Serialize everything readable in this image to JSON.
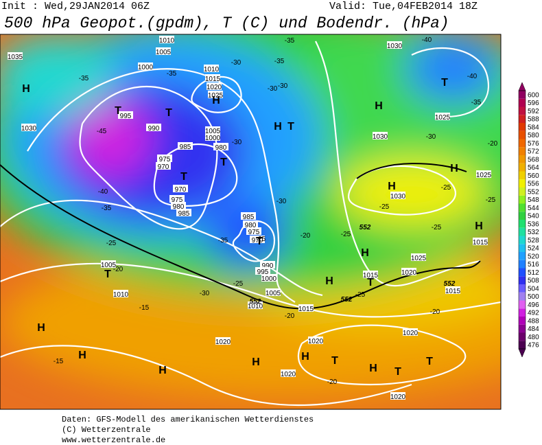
{
  "header": {
    "init": "Init : Wed,29JAN2014 06Z",
    "valid": "Valid: Tue,04FEB2014 18Z",
    "title": "500 hPa Geopot.(gpdm), T (C) und Bodendr. (hPa)"
  },
  "map": {
    "pressure_labels": [
      "1035",
      "1010",
      "1005",
      "1000",
      "995",
      "990",
      "1010",
      "1015",
      "1020",
      "1025",
      "1005",
      "1000",
      "985",
      "980",
      "975",
      "970",
      "970",
      "975",
      "980",
      "985",
      "985",
      "980",
      "975",
      "970",
      "990",
      "995",
      "1000",
      "1005",
      "1010",
      "1015",
      "1010",
      "1005",
      "1030",
      "1030",
      "1025",
      "1030",
      "1030",
      "1025",
      "1015",
      "1025",
      "1020",
      "1015",
      "1015",
      "1020",
      "1020",
      "1020",
      "1020",
      "1020"
    ],
    "temperature_labels": [
      "-35",
      "-40",
      "-35",
      "-30",
      "-35",
      "-30",
      "-30",
      "-40",
      "-35",
      "-30",
      "-35",
      "-45",
      "-40",
      "-35",
      "-25",
      "-35",
      "-30",
      "-25",
      "-20",
      "-25",
      "-25",
      "-25",
      "-25",
      "-25",
      "-20",
      "-20",
      "-25",
      "-30",
      "-15",
      "-20",
      "-20",
      "-15",
      "-20",
      "-25",
      "-30"
    ],
    "centers": [
      "H",
      "T",
      "T",
      "T",
      "H",
      "H",
      "T",
      "T",
      "T",
      "H",
      "H",
      "H",
      "H",
      "T",
      "T",
      "H",
      "H",
      "T",
      "H",
      "H",
      "H",
      "H",
      "H",
      "T",
      "H",
      "T",
      "T"
    ],
    "line_552_labels": [
      "552",
      "552",
      "552",
      "552"
    ]
  },
  "colorbar": {
    "ticks": [
      476,
      480,
      484,
      488,
      492,
      496,
      500,
      504,
      508,
      512,
      516,
      520,
      524,
      528,
      532,
      536,
      540,
      544,
      548,
      552,
      556,
      560,
      564,
      568,
      572,
      576,
      580,
      584,
      588,
      592,
      596,
      600
    ],
    "colors": [
      "#4b0050",
      "#6a006a",
      "#8a0090",
      "#b000b8",
      "#d020e0",
      "#e060f0",
      "#a080f0",
      "#6a5cff",
      "#3030f0",
      "#2050ff",
      "#2080ff",
      "#20a0ff",
      "#20c0f0",
      "#20d8d0",
      "#20e0a0",
      "#20e070",
      "#30d040",
      "#50e030",
      "#90f020",
      "#d0f020",
      "#f0f000",
      "#f0d000",
      "#f0b000",
      "#f09800",
      "#f08000",
      "#f06800",
      "#e85000",
      "#e03800",
      "#d02020",
      "#c01040",
      "#b00050",
      "#900060"
    ]
  },
  "footer": [
    "Daten: GFS-Modell des amerikanischen Wetterdienstes",
    "(C) Wetterzentrale",
    "www.wetterzentrale.de"
  ]
}
